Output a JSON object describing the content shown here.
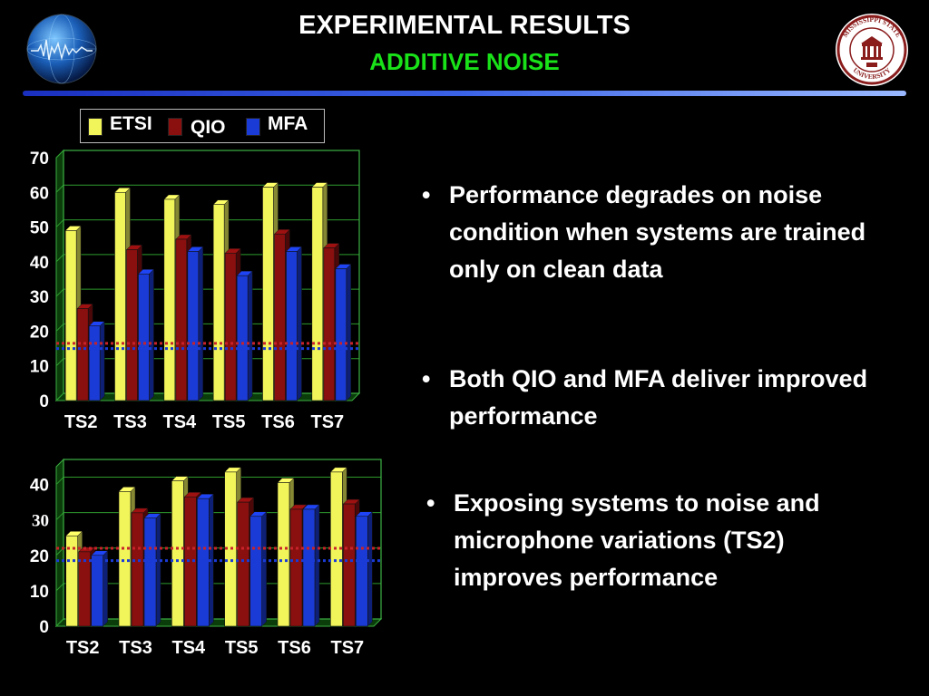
{
  "slide": {
    "title": "EXPERIMENTAL RESULTS",
    "subtitle": "ADDITIVE NOISE",
    "subtitle_color": "#19e219",
    "seal_text": "MISSISSIPPI STATE UNIVERSITY"
  },
  "legend": [
    {
      "name": "ETSI",
      "color": "#f2f55a"
    },
    {
      "name": "QIO",
      "color": "#8a0f0f"
    },
    {
      "name": "MFA",
      "color": "#1a3bd6"
    }
  ],
  "bullets": [
    "Performance degrades on noise condition when systems are trained only on clean data",
    "Both QIO and MFA deliver improved performance",
    "Exposing systems to noise and microphone variations (TS2) improves performance"
  ],
  "chart_data": [
    {
      "type": "bar",
      "categories": [
        "TS2",
        "TS3",
        "TS4",
        "TS5",
        "TS6",
        "TS7"
      ],
      "series": [
        {
          "name": "ETSI",
          "values": [
            49,
            60,
            58,
            56.5,
            61.5,
            61.5
          ]
        },
        {
          "name": "QIO",
          "values": [
            26.5,
            43.5,
            46.5,
            42.5,
            48,
            44
          ]
        },
        {
          "name": "MFA",
          "values": [
            21.5,
            36.5,
            43,
            36,
            43,
            38
          ]
        }
      ],
      "ylim": [
        0,
        70
      ],
      "yticks": [
        "0",
        "10",
        "20",
        "30",
        "40",
        "50",
        "60",
        "70"
      ],
      "reference_lines": [
        {
          "value": 16.5,
          "color": "#c8232a",
          "style": "dotted"
        },
        {
          "value": 15,
          "color": "#1a3bd6",
          "style": "dotted"
        }
      ],
      "grid": true
    },
    {
      "type": "bar",
      "categories": [
        "TS2",
        "TS3",
        "TS4",
        "TS5",
        "TS6",
        "TS7"
      ],
      "series": [
        {
          "name": "ETSI",
          "values": [
            25.5,
            38,
            41,
            43.5,
            40.5,
            43.5
          ]
        },
        {
          "name": "QIO",
          "values": [
            21,
            32,
            36.5,
            35,
            33,
            34.5
          ]
        },
        {
          "name": "MFA",
          "values": [
            20,
            30.5,
            36,
            31,
            33,
            31
          ]
        }
      ],
      "ylim": [
        0,
        45
      ],
      "yticks": [
        "0",
        "10",
        "20",
        "30",
        "40"
      ],
      "reference_lines": [
        {
          "value": 22,
          "color": "#c8232a",
          "style": "dotted"
        },
        {
          "value": 18.5,
          "color": "#1a3bd6",
          "style": "dotted"
        }
      ],
      "grid": true
    }
  ]
}
